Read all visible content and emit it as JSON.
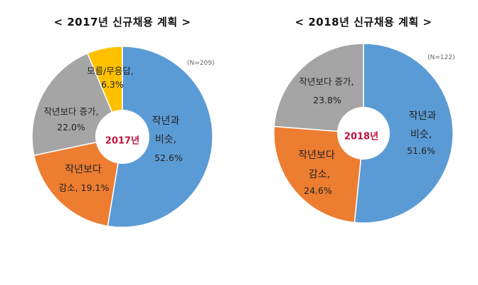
{
  "chart_data": [
    {
      "type": "pie",
      "donut": true,
      "title": "< 2017년 신규채용 계획 >",
      "center_label": "2017년",
      "note": "(N=209)",
      "slices": [
        {
          "name": "작년과 비슷",
          "value": 52.6,
          "label_lines": [
            "작년과",
            "비슷,",
            "52.6%"
          ],
          "color": "#5b9bd5"
        },
        {
          "name": "작년보다 감소",
          "value": 19.1,
          "label_lines": [
            "작년보다",
            "감소, 19.1%"
          ],
          "color": "#ed7d31"
        },
        {
          "name": "작년보다 증가",
          "value": 22.0,
          "label_lines": [
            "작년보다 증가,",
            "22.0%"
          ],
          "color": "#a5a5a5"
        },
        {
          "name": "모름/무응답",
          "value": 6.3,
          "label_lines": [
            "모름/무응답,",
            "6.3%"
          ],
          "color": "#ffc000"
        }
      ]
    },
    {
      "type": "pie",
      "donut": true,
      "title": "< 2018년 신규채용 계획 >",
      "center_label": "2018년",
      "note": "(N=122)",
      "slices": [
        {
          "name": "작년과 비슷",
          "value": 51.6,
          "label_lines": [
            "작년과",
            "비슷,",
            "51.6%"
          ],
          "color": "#5b9bd5"
        },
        {
          "name": "작년보다 감소",
          "value": 24.6,
          "label_lines": [
            "작년보다",
            "감소,",
            "24.6%"
          ],
          "color": "#ed7d31"
        },
        {
          "name": "작년보다 증가",
          "value": 23.8,
          "label_lines": [
            "작년보다 증가,",
            "23.8%"
          ],
          "color": "#a5a5a5"
        }
      ]
    }
  ]
}
